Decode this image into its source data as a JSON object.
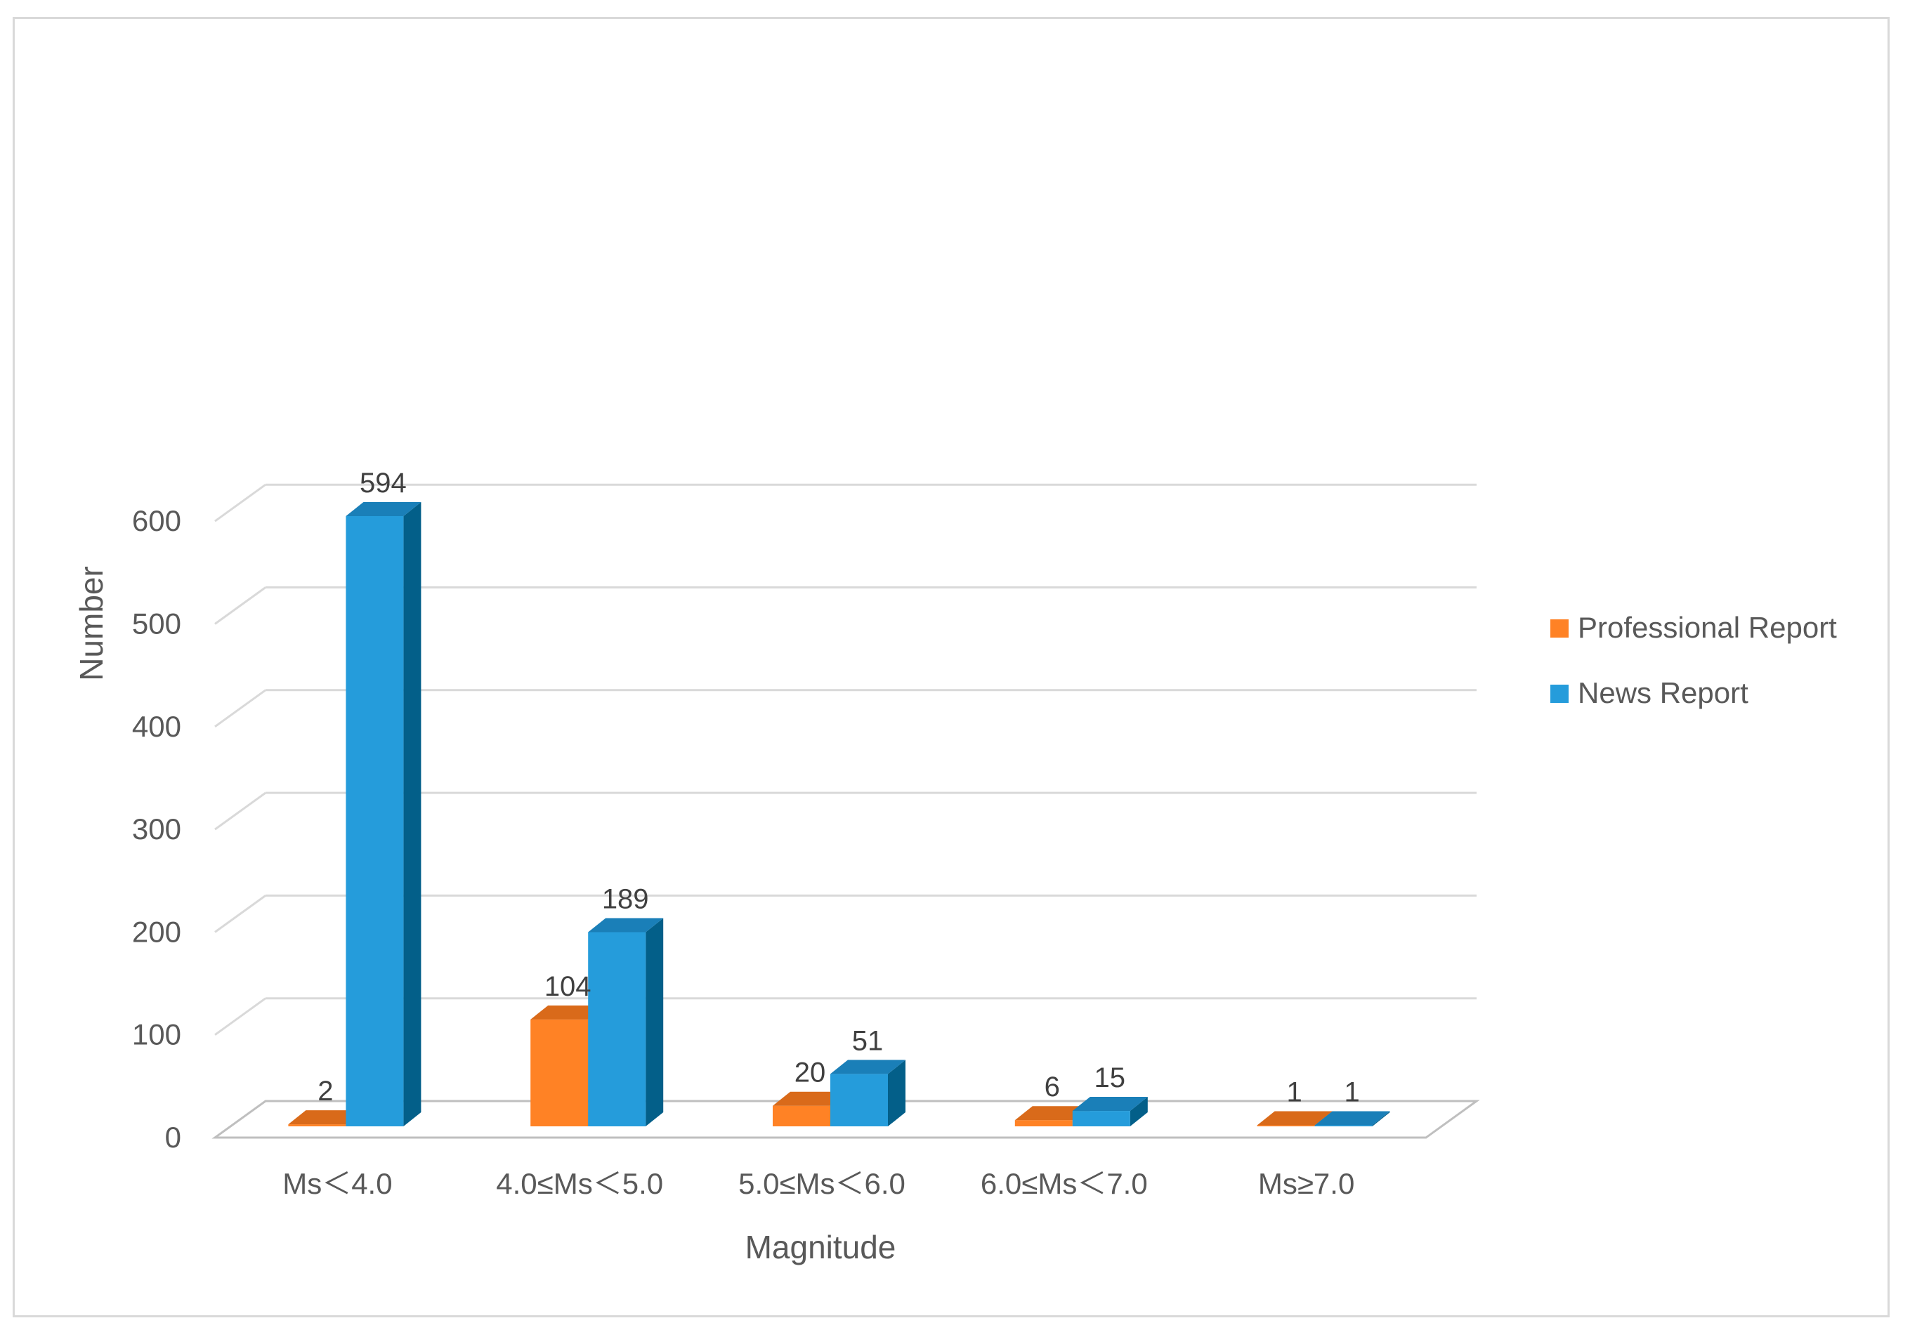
{
  "chart_data": {
    "type": "bar",
    "title": "",
    "xlabel": "Magnitude",
    "ylabel": "Number",
    "ylim": [
      0,
      600
    ],
    "yticks": [
      0,
      100,
      200,
      300,
      400,
      500,
      600
    ],
    "grid": true,
    "legend_position": "right",
    "categories": [
      "Ms＜4.0",
      "4.0≤Ms＜5.0",
      "5.0≤Ms＜6.0",
      "6.0≤Ms＜7.0",
      "Ms≥7.0"
    ],
    "series": [
      {
        "name": "Professional Report",
        "values": [
          2,
          104,
          20,
          6,
          1
        ],
        "color": "#FF8225",
        "side_color": "#C45A10",
        "top_color": "#D96A1A"
      },
      {
        "name": "News Report",
        "values": [
          594,
          189,
          51,
          15,
          1
        ],
        "color": "#259CDB",
        "side_color": "#035F89",
        "top_color": "#1A7FB8"
      }
    ]
  }
}
